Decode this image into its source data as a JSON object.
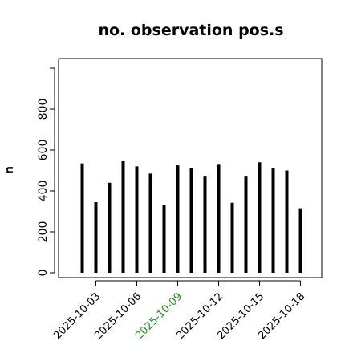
{
  "chart_data": {
    "type": "bar",
    "title": "no. observation pos.s",
    "xlabel": "",
    "ylabel": "n",
    "ylim": [
      0,
      1000
    ],
    "yticks": [
      0,
      200,
      400,
      600,
      800
    ],
    "grid": false,
    "x": [
      "2025-10-02",
      "2025-10-03",
      "2025-10-04",
      "2025-10-05",
      "2025-10-06",
      "2025-10-07",
      "2025-10-08",
      "2025-10-09",
      "2025-10-10",
      "2025-10-11",
      "2025-10-12",
      "2025-10-13",
      "2025-10-14",
      "2025-10-15",
      "2025-10-16",
      "2025-10-17",
      "2025-10-18"
    ],
    "values": [
      535,
      345,
      440,
      545,
      520,
      485,
      330,
      525,
      510,
      470,
      528,
      342,
      470,
      540,
      510,
      500,
      315
    ],
    "xtick_labels": [
      "2025-10-03",
      "2025-10-06",
      "2025-10-09",
      "2025-10-12",
      "2025-10-15",
      "2025-10-18"
    ],
    "highlight_tick": "2025-10-09",
    "colors": {
      "bars": "#000000",
      "axis": "#000000",
      "highlight_tick": "#228b22",
      "tick_text": "#000000"
    }
  }
}
